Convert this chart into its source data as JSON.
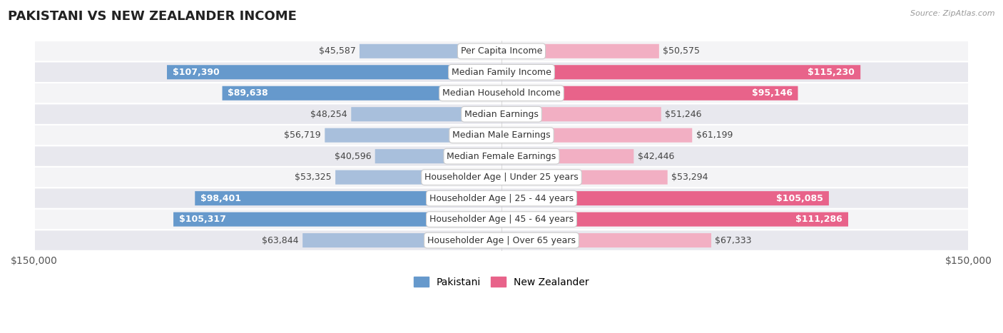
{
  "title": "PAKISTANI VS NEW ZEALANDER INCOME",
  "source": "Source: ZipAtlas.com",
  "categories": [
    "Per Capita Income",
    "Median Family Income",
    "Median Household Income",
    "Median Earnings",
    "Median Male Earnings",
    "Median Female Earnings",
    "Householder Age | Under 25 years",
    "Householder Age | 25 - 44 years",
    "Householder Age | 45 - 64 years",
    "Householder Age | Over 65 years"
  ],
  "pakistani_values": [
    45587,
    107390,
    89638,
    48254,
    56719,
    40596,
    53325,
    98401,
    105317,
    63844
  ],
  "nz_values": [
    50575,
    115230,
    95146,
    51246,
    61199,
    42446,
    53294,
    105085,
    111286,
    67333
  ],
  "pakistani_labels": [
    "$45,587",
    "$107,390",
    "$89,638",
    "$48,254",
    "$56,719",
    "$40,596",
    "$53,325",
    "$98,401",
    "$105,317",
    "$63,844"
  ],
  "nz_labels": [
    "$50,575",
    "$115,230",
    "$95,146",
    "$51,246",
    "$61,199",
    "$42,446",
    "$53,294",
    "$105,085",
    "$111,286",
    "$67,333"
  ],
  "max_value": 150000,
  "pakistani_color_light": "#a8bfdc",
  "pakistani_color_dark": "#6699cc",
  "nz_color_light": "#f2afc3",
  "nz_color_dark": "#e8638a",
  "row_bg_light": "#f4f4f6",
  "row_bg_dark": "#e8e8ee",
  "title_fontsize": 13,
  "label_fontsize": 9,
  "axis_label": "$150,000",
  "legend_pakistani": "Pakistani",
  "legend_nz": "New Zealander",
  "threshold_dark": 80000
}
